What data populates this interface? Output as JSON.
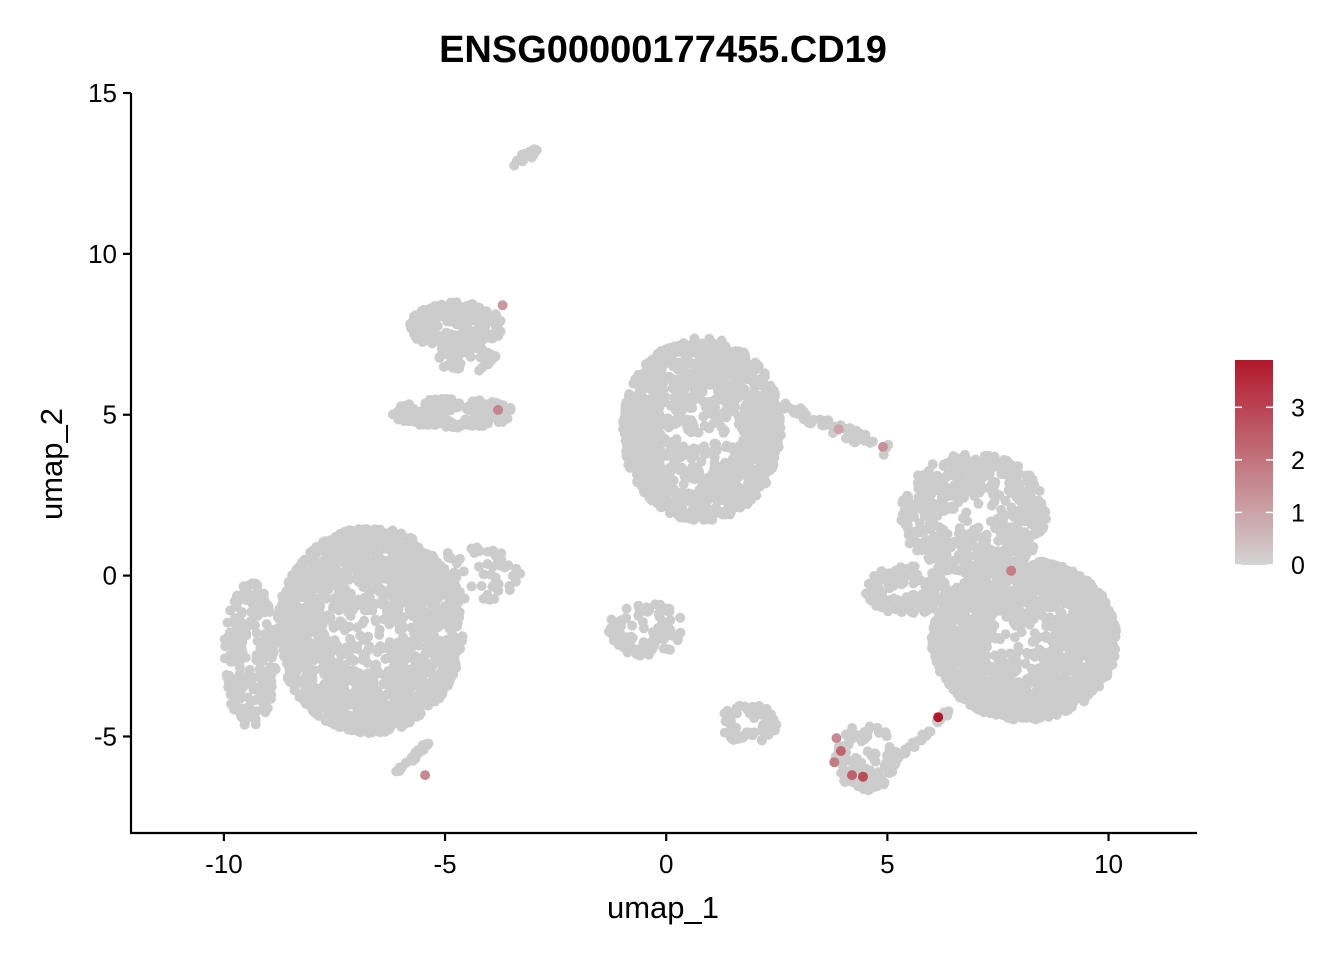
{
  "chart_data": {
    "type": "scatter",
    "title": "ENSG00000177455.CD19",
    "xlabel": "umap_1",
    "ylabel": "umap_2",
    "xlim": [
      -12.1,
      12
    ],
    "ylim": [
      -8,
      15
    ],
    "x_ticks": [
      -10,
      -5,
      0,
      5,
      10
    ],
    "x_tick_labels": [
      "-10",
      "-5",
      "0",
      "5",
      "10"
    ],
    "y_ticks": [
      -5,
      0,
      5,
      10,
      15
    ],
    "y_tick_labels": [
      "-5",
      "0",
      "5",
      "10",
      "15"
    ],
    "grid": false,
    "legend": {
      "position": "right",
      "title": "",
      "min": 0,
      "max": 3.9,
      "breaks": [
        0,
        1,
        2,
        3
      ],
      "break_labels": [
        "0",
        "1",
        "2",
        "3"
      ],
      "low_color": "#d3d3d3",
      "high_color": "#b2182b"
    },
    "base_point_color": "#cccccc",
    "clusters": [
      {
        "name": "left-large",
        "x": [
          -8.8,
          -4.6
        ],
        "y": [
          -4.9,
          1.5
        ],
        "n": 1600,
        "shape": "blob"
      },
      {
        "name": "left-far-lobe",
        "x": [
          -10.0,
          -8.8
        ],
        "y": [
          -4.7,
          -0.2
        ],
        "n": 220,
        "shape": "blob"
      },
      {
        "name": "left-arm",
        "x": [
          -5.2,
          -3.3
        ],
        "y": [
          -0.8,
          1.0
        ],
        "n": 60,
        "shape": "blob"
      },
      {
        "name": "left-tail",
        "x": [
          -6.2,
          -5.3
        ],
        "y": [
          -6.3,
          -5.1
        ],
        "n": 25,
        "shape": "diag"
      },
      {
        "name": "upper-left-top",
        "x": [
          -5.8,
          -3.7
        ],
        "y": [
          7.0,
          8.5
        ],
        "n": 220,
        "shape": "blob"
      },
      {
        "name": "upper-left-stem",
        "x": [
          -5.2,
          -3.8
        ],
        "y": [
          6.3,
          7.1
        ],
        "n": 45,
        "shape": "blob"
      },
      {
        "name": "upper-left-bottom",
        "x": [
          -6.2,
          -3.4
        ],
        "y": [
          4.6,
          5.5
        ],
        "n": 190,
        "shape": "blob"
      },
      {
        "name": "top-island",
        "x": [
          -3.4,
          -2.9
        ],
        "y": [
          12.9,
          13.2
        ],
        "n": 14,
        "shape": "diag"
      },
      {
        "name": "center-large",
        "x": [
          -1.0,
          2.6
        ],
        "y": [
          1.7,
          7.4
        ],
        "n": 1200,
        "shape": "blob"
      },
      {
        "name": "center-bridge",
        "x": [
          2.4,
          5.0
        ],
        "y": [
          3.9,
          5.4
        ],
        "n": 55,
        "shape": "diag-down"
      },
      {
        "name": "center-small",
        "x": [
          -1.3,
          0.4
        ],
        "y": [
          -2.5,
          -0.8
        ],
        "n": 90,
        "shape": "blob"
      },
      {
        "name": "bottom-small",
        "x": [
          1.2,
          2.5
        ],
        "y": [
          -5.2,
          -4.0
        ],
        "n": 70,
        "shape": "blob"
      },
      {
        "name": "right-upper",
        "x": [
          5.3,
          8.6
        ],
        "y": [
          0.0,
          3.8
        ],
        "n": 520,
        "shape": "blob"
      },
      {
        "name": "right-large",
        "x": [
          6.0,
          10.2
        ],
        "y": [
          -4.5,
          0.5
        ],
        "n": 1500,
        "shape": "blob"
      },
      {
        "name": "right-left-lobe",
        "x": [
          4.5,
          6.4
        ],
        "y": [
          -1.2,
          0.3
        ],
        "n": 120,
        "shape": "blob"
      },
      {
        "name": "right-bottom-small",
        "x": [
          3.8,
          5.2
        ],
        "y": [
          -6.7,
          -4.6
        ],
        "n": 95,
        "shape": "blob"
      },
      {
        "name": "right-bridge",
        "x": [
          5.1,
          6.4
        ],
        "y": [
          -5.9,
          -4.2
        ],
        "n": 25,
        "shape": "diag"
      }
    ],
    "expressing_points": [
      {
        "x": 6.15,
        "y": -4.4,
        "value": 3.9
      },
      {
        "x": 4.45,
        "y": -6.25,
        "value": 2.8
      },
      {
        "x": 4.2,
        "y": -6.2,
        "value": 2.4
      },
      {
        "x": 3.95,
        "y": -5.45,
        "value": 2.3
      },
      {
        "x": 3.8,
        "y": -5.8,
        "value": 1.8
      },
      {
        "x": 3.85,
        "y": -5.05,
        "value": 1.5
      },
      {
        "x": 4.9,
        "y": 4.0,
        "value": 1.4
      },
      {
        "x": -3.8,
        "y": 5.15,
        "value": 1.6
      },
      {
        "x": -5.45,
        "y": -6.2,
        "value": 1.5
      },
      {
        "x": 7.8,
        "y": 0.15,
        "value": 1.8
      },
      {
        "x": 3.9,
        "y": 4.55,
        "value": 1.0
      },
      {
        "x": -3.7,
        "y": 8.4,
        "value": 1.2
      }
    ]
  }
}
